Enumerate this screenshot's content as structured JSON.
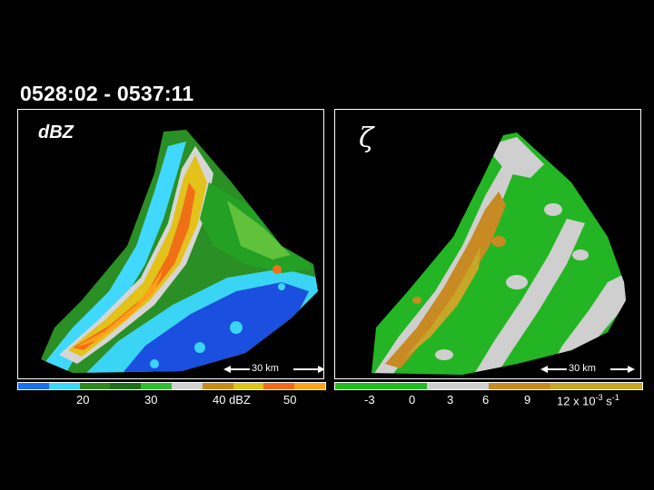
{
  "title": "0528:02 - 0537:11",
  "left_panel": {
    "label": "dBZ",
    "scale_label": "30 km",
    "colorbar": {
      "colors": [
        "#1a6ef0",
        "#3ad8ff",
        "#2f8a1e",
        "#1f6f1a",
        "#2ebf2e",
        "#d0d0d0",
        "#c98a1a",
        "#e0c41a",
        "#f26a1c",
        "#ffa21a"
      ],
      "tick_labels": [
        "20",
        "30",
        "40 dBZ",
        "50"
      ]
    }
  },
  "right_panel": {
    "label": "ζ",
    "scale_label": "30 km",
    "colorbar": {
      "colors": [
        "#22bb22",
        "#22bb22",
        "#22bb22",
        "#cfcfcf",
        "#cfcfcf",
        "#c88a22",
        "#c88a22",
        "#c8a628",
        "#c8a628",
        "#c8a628"
      ],
      "tick_labels": [
        "-3",
        "0",
        "3",
        "6",
        "9"
      ],
      "unit_label_main": "12 x 10",
      "unit_label_sup": "-3",
      "unit_label_end": " s",
      "unit_label_sup2": "-1"
    }
  }
}
